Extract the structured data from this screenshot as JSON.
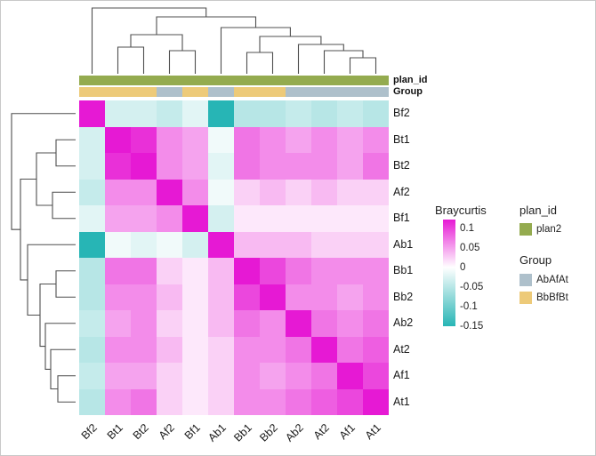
{
  "chart_data": {
    "type": "heatmap",
    "rows": [
      "Bf2",
      "Bt1",
      "Bt2",
      "Af2",
      "Bf1",
      "Ab1",
      "Bb1",
      "Bb2",
      "Ab2",
      "At2",
      "Af1",
      "At1"
    ],
    "columns": [
      "Bf2",
      "Bt1",
      "Bt2",
      "Af2",
      "Bf1",
      "Ab1",
      "Bb1",
      "Bb2",
      "Ab2",
      "At2",
      "Af1",
      "At1"
    ],
    "values": [
      [
        0.1,
        -0.03,
        -0.03,
        -0.04,
        -0.02,
        -0.15,
        -0.05,
        -0.05,
        -0.04,
        -0.05,
        -0.04,
        -0.05
      ],
      [
        -0.03,
        0.1,
        0.09,
        0.05,
        0.04,
        -0.01,
        0.06,
        0.05,
        0.04,
        0.05,
        0.04,
        0.05
      ],
      [
        -0.03,
        0.09,
        0.1,
        0.05,
        0.04,
        -0.02,
        0.06,
        0.05,
        0.05,
        0.05,
        0.04,
        0.06
      ],
      [
        -0.04,
        0.05,
        0.05,
        0.1,
        0.05,
        -0.01,
        0.02,
        0.03,
        0.02,
        0.03,
        0.02,
        0.02
      ],
      [
        -0.02,
        0.04,
        0.04,
        0.05,
        0.1,
        -0.03,
        0.01,
        0.01,
        0.01,
        0.01,
        0.01,
        0.01
      ],
      [
        -0.15,
        -0.01,
        -0.02,
        -0.01,
        -0.03,
        0.1,
        0.03,
        0.03,
        0.03,
        0.02,
        0.02,
        0.02
      ],
      [
        -0.05,
        0.06,
        0.06,
        0.02,
        0.01,
        0.03,
        0.1,
        0.08,
        0.06,
        0.05,
        0.05,
        0.05
      ],
      [
        -0.05,
        0.05,
        0.05,
        0.03,
        0.01,
        0.03,
        0.08,
        0.1,
        0.05,
        0.05,
        0.04,
        0.05
      ],
      [
        -0.04,
        0.04,
        0.05,
        0.02,
        0.01,
        0.03,
        0.06,
        0.05,
        0.1,
        0.06,
        0.05,
        0.06
      ],
      [
        -0.05,
        0.05,
        0.05,
        0.03,
        0.01,
        0.02,
        0.05,
        0.05,
        0.06,
        0.1,
        0.06,
        0.07
      ],
      [
        -0.04,
        0.04,
        0.04,
        0.02,
        0.01,
        0.02,
        0.05,
        0.04,
        0.05,
        0.06,
        0.1,
        0.08
      ],
      [
        -0.05,
        0.05,
        0.06,
        0.02,
        0.01,
        0.02,
        0.05,
        0.05,
        0.06,
        0.07,
        0.08,
        0.1
      ]
    ],
    "vmin": -0.15,
    "vmax": 0.1,
    "colors": {
      "positive": "#e619d4",
      "zero": "#ffffff",
      "negative": "#27b5b5"
    },
    "annotations": {
      "plan_id_label": "plan_id",
      "group_label": "Group",
      "plan_id_color": "#94ab4f",
      "plan_id_values": [
        "plan2",
        "plan2",
        "plan2",
        "plan2",
        "plan2",
        "plan2",
        "plan2",
        "plan2",
        "plan2",
        "plan2",
        "plan2",
        "plan2"
      ],
      "group_values": [
        "BbBfBt",
        "BbBfBt",
        "BbBfBt",
        "AbAfAt",
        "BbBfBt",
        "AbAfAt",
        "BbBfBt",
        "BbBfBt",
        "AbAfAt",
        "AbAfAt",
        "AbAfAt",
        "AbAfAt"
      ]
    },
    "legend": {
      "colorbar_title": "Braycurtis",
      "colorbar_ticks": [
        "0.1",
        "0.05",
        "0",
        "-0.05",
        "-0.1",
        "-0.15"
      ],
      "plan_id_title": "plan_id",
      "plan_id_items": [
        {
          "label": "plan2",
          "color": "#94ab4f"
        }
      ],
      "group_title": "Group",
      "group_items": [
        {
          "label": "AbAfAt",
          "color": "#aec0cb"
        },
        {
          "label": "BbBfBt",
          "color": "#edca79"
        }
      ]
    }
  }
}
